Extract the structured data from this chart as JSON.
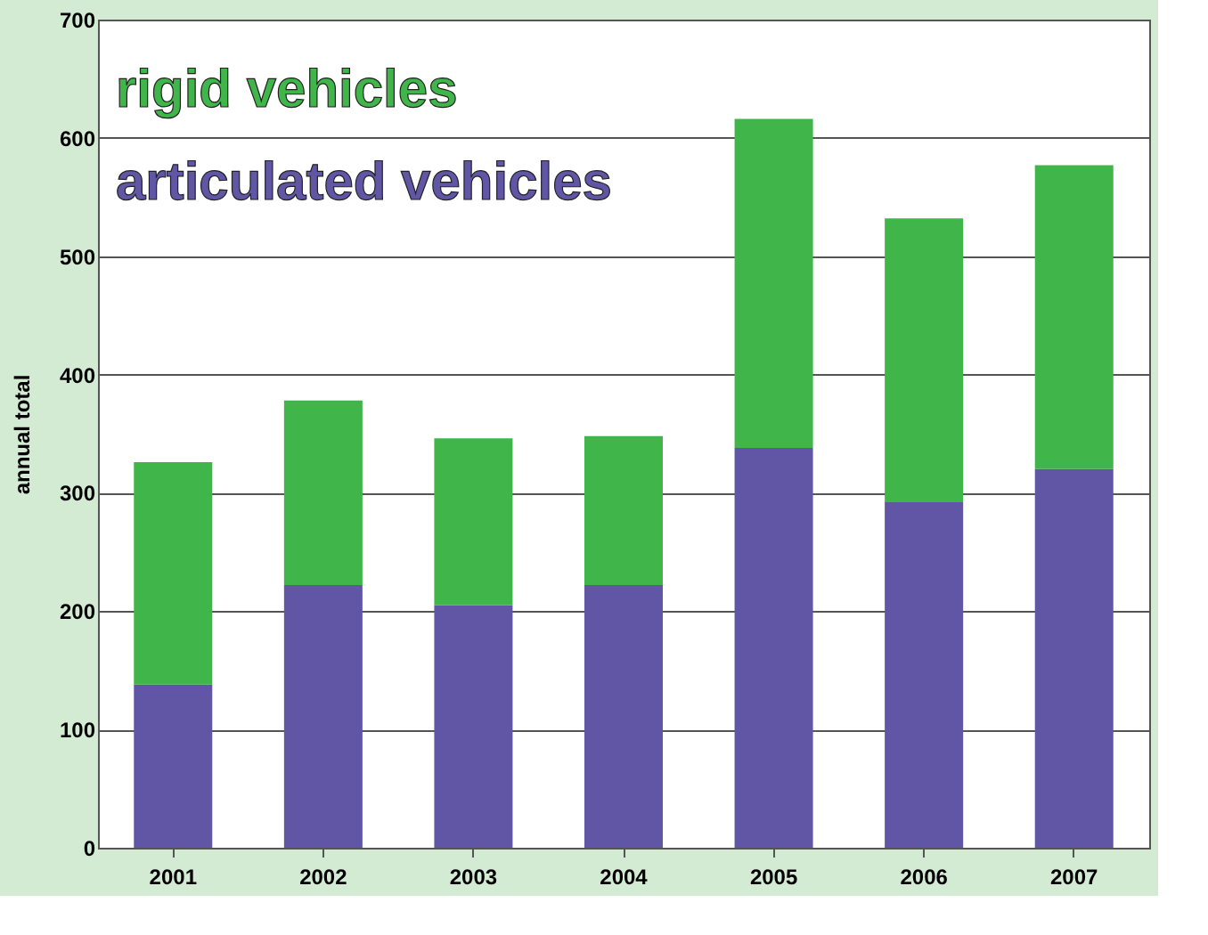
{
  "chart_data": {
    "type": "bar",
    "stacked": true,
    "ylabel": "annual total",
    "categories": [
      "2001",
      "2002",
      "2003",
      "2004",
      "2005",
      "2006",
      "2007"
    ],
    "series": [
      {
        "name": "articulated vehicles",
        "color": "#6155a6",
        "values": [
          138,
          222,
          205,
          222,
          338,
          292,
          320
        ]
      },
      {
        "name": "rigid vehicles",
        "color": "#3fb54a",
        "values": [
          188,
          156,
          141,
          126,
          278,
          240,
          257
        ]
      }
    ],
    "ylim": [
      0,
      700
    ],
    "yticks": [
      0,
      100,
      200,
      300,
      400,
      500,
      600,
      700
    ],
    "grid": "y",
    "legend": "top left"
  }
}
